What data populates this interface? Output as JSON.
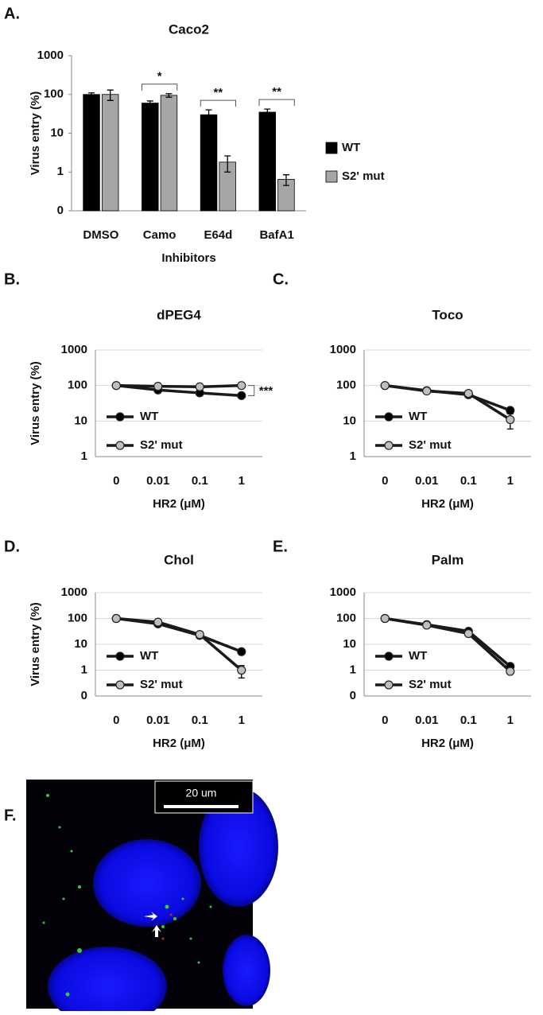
{
  "chart_data": [
    {
      "panel": "A.",
      "type": "bar",
      "title": "Caco2",
      "x_label": "Inhibitors",
      "y_label": "Virus entry (%)",
      "categories": [
        "DMSO",
        "Camo",
        "E64d",
        "BafA1"
      ],
      "series": [
        {
          "name": "WT",
          "color": "#000000",
          "values": [
            100,
            60,
            30,
            35
          ],
          "errors": [
            10,
            8,
            10,
            7
          ]
        },
        {
          "name": "S2' mut",
          "color": "#a6a6a6",
          "values": [
            100,
            95,
            1.8,
            0.65
          ],
          "errors": [
            30,
            10,
            0.8,
            0.2
          ]
        }
      ],
      "significance": [
        null,
        "*",
        "**",
        "**"
      ],
      "log_scale": true,
      "ylim": [
        0.1,
        1000
      ],
      "yticks": [
        {
          "value": 0.1,
          "label": "0"
        },
        1,
        10,
        100,
        1000
      ],
      "grid": false,
      "legend": "right"
    },
    {
      "panel": "B.",
      "type": "line",
      "title": "dPEG4",
      "x_label": "HR2 (μM)",
      "y_label": "Virus entry (%)",
      "categories": [
        "0",
        "0.01",
        "0.1",
        "1"
      ],
      "line_color": "#1a1a1a",
      "series": [
        {
          "name": "WT",
          "color": "#000000",
          "values": [
            100,
            75,
            62,
            52
          ]
        },
        {
          "name": "S2' mut",
          "color": "#bfbfbf",
          "values": [
            100,
            95,
            92,
            100
          ]
        }
      ],
      "annotation": "***",
      "log_scale": true,
      "ylim": [
        1,
        1000
      ],
      "yticks": [
        1,
        10,
        100,
        1000
      ],
      "grid": true,
      "legend": "lower left"
    },
    {
      "panel": "C.",
      "type": "line",
      "title": "Toco",
      "x_label": "HR2 (μM)",
      "categories": [
        "0",
        "0.01",
        "0.1",
        "1"
      ],
      "line_color": "#1a1a1a",
      "series": [
        {
          "name": "WT",
          "color": "#000000",
          "values": [
            100,
            72,
            55,
            20
          ]
        },
        {
          "name": "S2' mut",
          "color": "#bfbfbf",
          "values": [
            100,
            70,
            60,
            11
          ],
          "errors": [
            null,
            null,
            null,
            5
          ]
        }
      ],
      "log_scale": true,
      "ylim": [
        1,
        1000
      ],
      "yticks": [
        1,
        10,
        100,
        1000
      ],
      "grid": true,
      "legend": "lower left"
    },
    {
      "panel": "D.",
      "type": "line",
      "title": "Chol",
      "x_label": "HR2 (μM)",
      "y_label": "Virus entry (%)",
      "categories": [
        "0",
        "0.01",
        "0.1",
        "1"
      ],
      "line_color": "#1a1a1a",
      "series": [
        {
          "name": "WT",
          "color": "#000000",
          "values": [
            100,
            62,
            22,
            5.2
          ]
        },
        {
          "name": "S2' mut",
          "color": "#bfbfbf",
          "values": [
            100,
            72,
            24,
            1.0
          ],
          "errors": [
            null,
            null,
            null,
            0.5
          ]
        }
      ],
      "log_scale": true,
      "ylim": [
        0.1,
        1000
      ],
      "yticks": [
        {
          "value": 0.1,
          "label": "0"
        },
        1,
        10,
        100,
        1000
      ],
      "grid": true,
      "legend": "lower left"
    },
    {
      "panel": "E.",
      "type": "line",
      "title": "Palm",
      "x_label": "HR2 (μM)",
      "categories": [
        "0",
        "0.01",
        "0.1",
        "1"
      ],
      "line_color": "#1a1a1a",
      "series": [
        {
          "name": "WT",
          "color": "#000000",
          "values": [
            100,
            58,
            32,
            1.4
          ]
        },
        {
          "name": "S2' mut",
          "color": "#bfbfbf",
          "values": [
            100,
            55,
            26,
            0.9
          ]
        }
      ],
      "log_scale": true,
      "ylim": [
        0.1,
        1000
      ],
      "yticks": [
        {
          "value": 0.1,
          "label": "0"
        },
        1,
        10,
        100,
        1000
      ],
      "grid": true,
      "legend": "lower left"
    }
  ],
  "image_panel": {
    "panel": "F.",
    "scale_bar_label": "20 um"
  }
}
